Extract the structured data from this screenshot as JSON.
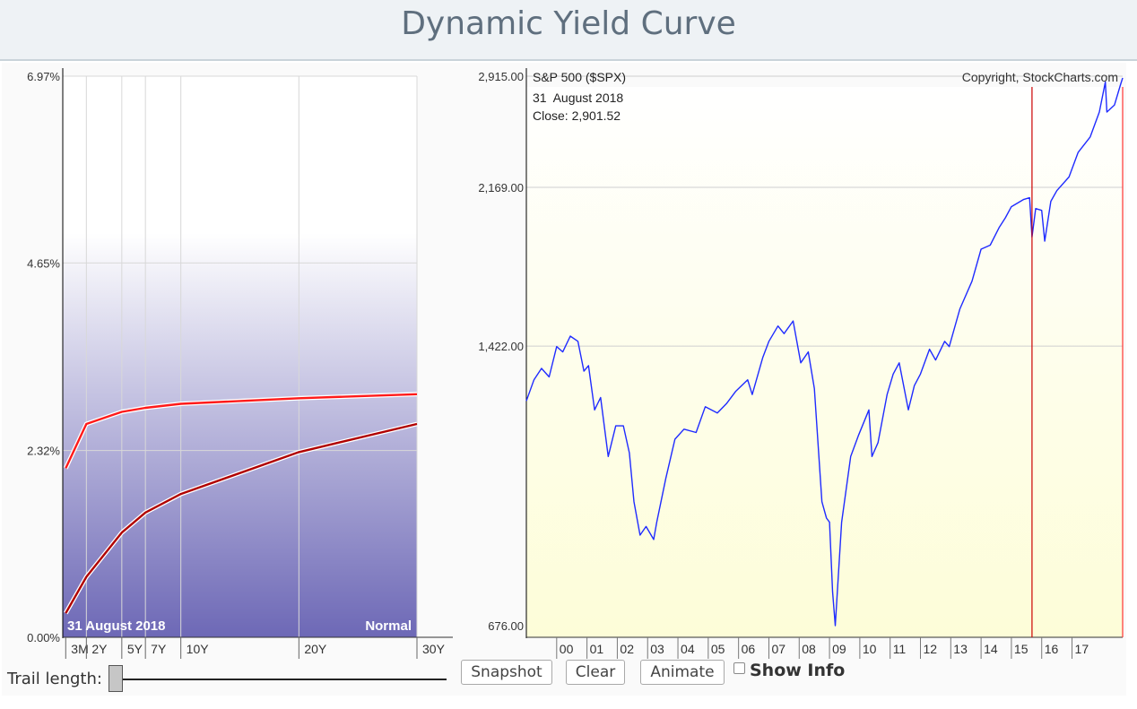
{
  "header": {
    "title": "Dynamic Yield Curve"
  },
  "colors": {
    "curve_current": "#ff1a1a",
    "curve_trail": "#b00000",
    "spx_line": "#1f2bff",
    "date_marker": "#cc0000",
    "left_gradient_top": "#ffffff",
    "left_gradient_bottom": "#6d68b6",
    "right_gradient_top": "#ffffff",
    "right_gradient_bottom": "#fdfdd8"
  },
  "chart_data": [
    {
      "type": "line",
      "ytick_labels": [
        "6.97%",
        "4.65%",
        "2.32%",
        "0.00%"
      ],
      "ytick_values": [
        6.97,
        4.65,
        2.32,
        0.0
      ],
      "categories": [
        "3M",
        "2Y",
        "5Y",
        "7Y",
        "10Y",
        "20Y",
        "30Y"
      ],
      "x_years": [
        0.25,
        2,
        5,
        7,
        10,
        20,
        30
      ],
      "ylim": [
        0,
        6.97
      ],
      "grid": true,
      "date_label": "31  August 2018",
      "curve_state": "Normal",
      "series": [
        {
          "values": [
            2.1,
            2.65,
            2.8,
            2.85,
            2.9,
            2.97,
            3.02
          ]
        },
        {
          "values": [
            0.3,
            0.75,
            1.3,
            1.55,
            1.78,
            2.3,
            2.65
          ]
        }
      ]
    },
    {
      "type": "line",
      "title": "S&P 500 ($SPX)",
      "subtitle_date": "31  August 2018",
      "subtitle_close": "Close: 2,901.52",
      "copyright": "Copyright, StockCharts.com",
      "y_scale": "log",
      "ytick_labels": [
        "2,915.00",
        "2,169.00",
        "1,422.00",
        "676.00"
      ],
      "ytick_values": [
        2915,
        2169,
        1422,
        676
      ],
      "ylim": [
        676,
        2915
      ],
      "xtick_labels": [
        "00",
        "01",
        "02",
        "03",
        "04",
        "05",
        "06",
        "07",
        "08",
        "09",
        "10",
        "11",
        "12",
        "13",
        "14",
        "15",
        "16",
        "17"
      ],
      "xlim": [
        1999.0,
        2018.67
      ],
      "marker_date": "31  August 2018",
      "grid": true,
      "series": [
        {
          "name": "S&P 500 ($SPX)",
          "x": [
            1999.0,
            1999.25,
            1999.5,
            1999.75,
            2000.0,
            2000.2,
            2000.45,
            2000.7,
            2000.9,
            2001.05,
            2001.25,
            2001.45,
            2001.7,
            2001.95,
            2002.2,
            2002.4,
            2002.55,
            2002.75,
            2002.95,
            2003.2,
            2003.3,
            2003.6,
            2003.9,
            2004.2,
            2004.6,
            2004.9,
            2005.3,
            2005.6,
            2005.9,
            2006.3,
            2006.45,
            2006.8,
            2007.0,
            2007.3,
            2007.5,
            2007.8,
            2008.05,
            2008.3,
            2008.5,
            2008.75,
            2008.9,
            2009.0,
            2009.1,
            2009.19,
            2009.4,
            2009.7,
            2009.95,
            2010.3,
            2010.4,
            2010.6,
            2010.9,
            2011.1,
            2011.3,
            2011.6,
            2011.8,
            2012.0,
            2012.3,
            2012.5,
            2012.8,
            2012.95,
            2013.3,
            2013.7,
            2014.0,
            2014.3,
            2014.6,
            2014.8,
            2015.0,
            2015.4,
            2015.6,
            2015.68,
            2015.8,
            2016.0,
            2016.1,
            2016.3,
            2016.5,
            2016.9,
            2017.2,
            2017.6,
            2017.9,
            2018.1,
            2018.15,
            2018.4,
            2018.6,
            2018.67
          ],
          "values": [
            1229,
            1300,
            1340,
            1310,
            1420,
            1400,
            1460,
            1440,
            1330,
            1350,
            1200,
            1240,
            1060,
            1150,
            1150,
            1070,
            940,
            860,
            880,
            850,
            890,
            1000,
            1110,
            1140,
            1130,
            1210,
            1190,
            1220,
            1260,
            1300,
            1250,
            1380,
            1440,
            1500,
            1470,
            1520,
            1360,
            1400,
            1270,
            940,
            900,
            890,
            740,
            676,
            890,
            1060,
            1120,
            1200,
            1060,
            1100,
            1250,
            1320,
            1360,
            1200,
            1280,
            1320,
            1410,
            1370,
            1440,
            1420,
            1570,
            1690,
            1840,
            1860,
            1950,
            2000,
            2060,
            2100,
            2110,
            1900,
            2050,
            2040,
            1880,
            2090,
            2150,
            2230,
            2380,
            2480,
            2650,
            2870,
            2650,
            2700,
            2850,
            2901.52
          ]
        }
      ]
    }
  ],
  "controls": {
    "trail_label": "Trail length:",
    "trail_value": 0,
    "snapshot_label": "Snapshot",
    "clear_label": "Clear",
    "animate_label": "Animate",
    "show_info_label": "Show Info",
    "show_info_checked": false
  }
}
